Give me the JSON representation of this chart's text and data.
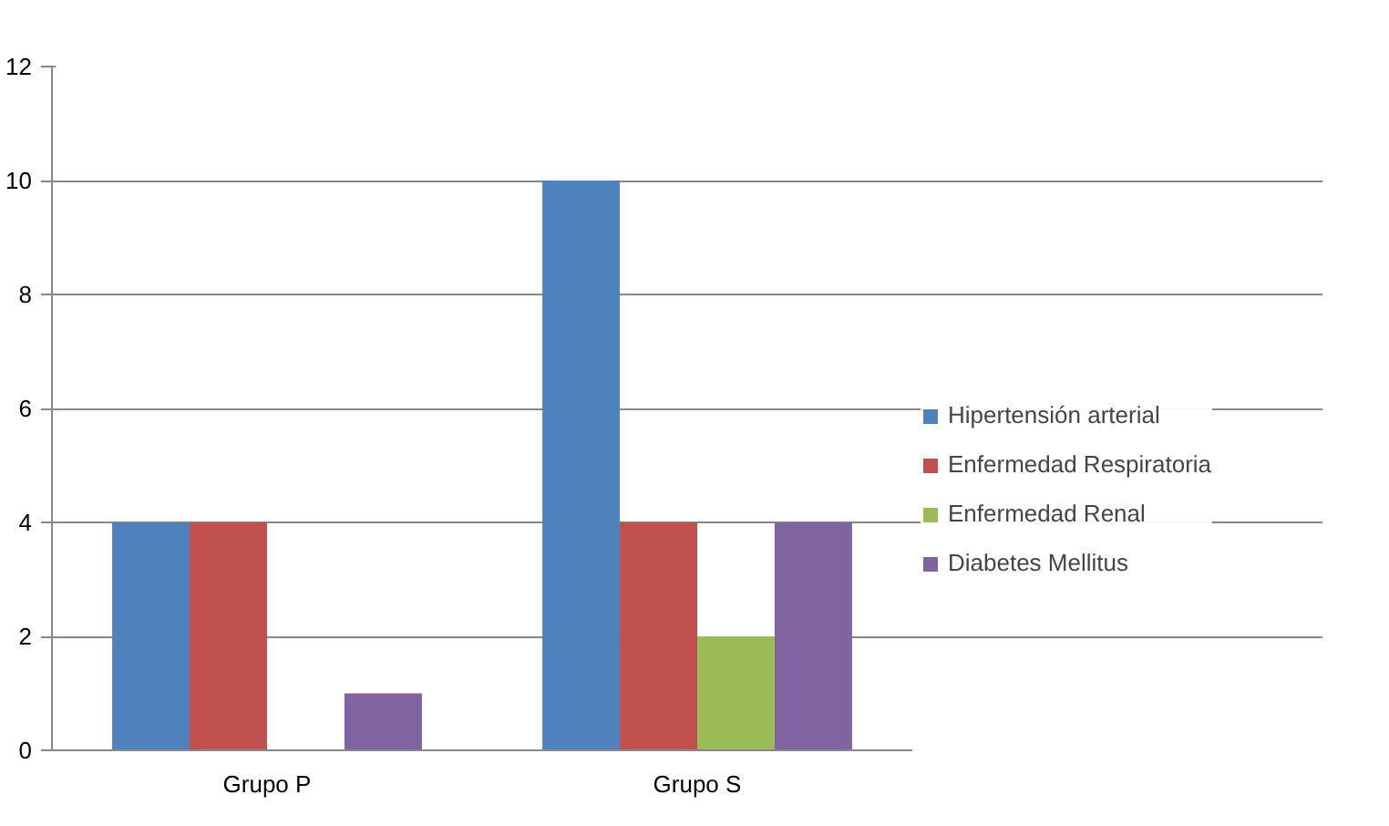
{
  "chart_data": {
    "type": "bar",
    "categories": [
      "Grupo P",
      "Grupo S"
    ],
    "series": [
      {
        "name": "Hipertensión arterial",
        "color": "#4f81bd",
        "values": [
          4,
          10
        ]
      },
      {
        "name": "Enfermedad Respiratoria",
        "color": "#c0504d",
        "values": [
          4,
          4
        ]
      },
      {
        "name": "Enfermedad Renal",
        "color": "#9bbb59",
        "values": [
          0,
          2
        ]
      },
      {
        "name": "Diabetes Mellitus",
        "color": "#8064a2",
        "values": [
          1,
          4
        ]
      }
    ],
    "ylim": [
      0,
      12
    ],
    "yticks": [
      0,
      2,
      4,
      6,
      8,
      10,
      12
    ],
    "grid": "y",
    "legend": "right"
  }
}
